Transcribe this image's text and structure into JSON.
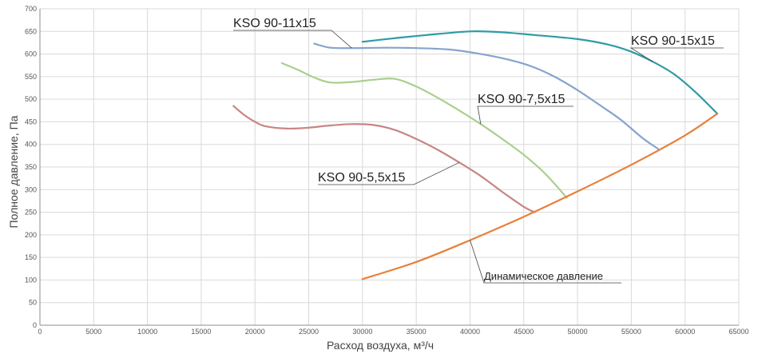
{
  "chart_data": {
    "type": "line",
    "xlabel": "Расход воздуха, м³/ч",
    "ylabel": "Полное давление, Па",
    "xlim": [
      0,
      65000
    ],
    "ylim": [
      0,
      700
    ],
    "xticks": [
      0,
      5000,
      10000,
      15000,
      20000,
      25000,
      30000,
      35000,
      40000,
      45000,
      50000,
      55000,
      60000,
      65000
    ],
    "yticks": [
      0,
      50,
      100,
      150,
      200,
      250,
      300,
      350,
      400,
      450,
      500,
      550,
      600,
      650,
      700
    ],
    "grid": true,
    "series": [
      {
        "name": "KSO 90-15x15",
        "color": "#2E9BA6",
        "points": [
          [
            30000,
            627
          ],
          [
            33000,
            635
          ],
          [
            36000,
            642
          ],
          [
            40000,
            650
          ],
          [
            43000,
            648
          ],
          [
            46000,
            642
          ],
          [
            50000,
            633
          ],
          [
            53000,
            620
          ],
          [
            55000,
            605
          ],
          [
            57000,
            583
          ],
          [
            59000,
            555
          ],
          [
            61000,
            515
          ],
          [
            63000,
            468
          ]
        ]
      },
      {
        "name": "KSO 90-11x15",
        "color": "#87A3CE",
        "points": [
          [
            25500,
            623
          ],
          [
            27000,
            614
          ],
          [
            29000,
            613
          ],
          [
            32000,
            614
          ],
          [
            35000,
            613
          ],
          [
            38000,
            610
          ],
          [
            41000,
            600
          ],
          [
            44000,
            585
          ],
          [
            46000,
            570
          ],
          [
            48000,
            548
          ],
          [
            50000,
            520
          ],
          [
            52000,
            488
          ],
          [
            54000,
            455
          ],
          [
            56000,
            415
          ],
          [
            57500,
            390
          ]
        ]
      },
      {
        "name": "KSO 90-7,5x15",
        "color": "#A8D08D",
        "points": [
          [
            22500,
            580
          ],
          [
            24000,
            565
          ],
          [
            25500,
            548
          ],
          [
            27000,
            537
          ],
          [
            29000,
            538
          ],
          [
            31000,
            543
          ],
          [
            33000,
            545
          ],
          [
            35000,
            528
          ],
          [
            37000,
            503
          ],
          [
            39000,
            475
          ],
          [
            41000,
            445
          ],
          [
            43000,
            412
          ],
          [
            45000,
            377
          ],
          [
            47000,
            335
          ],
          [
            49000,
            282
          ]
        ]
      },
      {
        "name": "KSO 90-5,5x15",
        "color": "#C88585",
        "points": [
          [
            18000,
            485
          ],
          [
            19000,
            465
          ],
          [
            20000,
            450
          ],
          [
            21000,
            440
          ],
          [
            23000,
            435
          ],
          [
            25000,
            437
          ],
          [
            27000,
            442
          ],
          [
            29000,
            445
          ],
          [
            31000,
            443
          ],
          [
            33000,
            432
          ],
          [
            35000,
            412
          ],
          [
            37000,
            388
          ],
          [
            39000,
            360
          ],
          [
            41000,
            330
          ],
          [
            43000,
            295
          ],
          [
            45000,
            262
          ],
          [
            46000,
            250
          ]
        ]
      },
      {
        "name": "Динамическое давление",
        "color": "#E8803A",
        "points": [
          [
            30000,
            102
          ],
          [
            35000,
            140
          ],
          [
            40000,
            188
          ],
          [
            45000,
            240
          ],
          [
            50000,
            296
          ],
          [
            55000,
            355
          ],
          [
            60000,
            420
          ],
          [
            63000,
            468
          ]
        ]
      }
    ],
    "annotations": [
      {
        "text": "KSO 90-11x15",
        "series": "KSO 90-11x15"
      },
      {
        "text": "KSO 90-15x15",
        "series": "KSO 90-15x15"
      },
      {
        "text": "KSO 90-7,5x15",
        "series": "KSO 90-7,5x15"
      },
      {
        "text": "KSO 90-5,5x15",
        "series": "KSO 90-5,5x15"
      },
      {
        "text": "Динамическое давление",
        "series": "Динамическое давление"
      }
    ]
  }
}
